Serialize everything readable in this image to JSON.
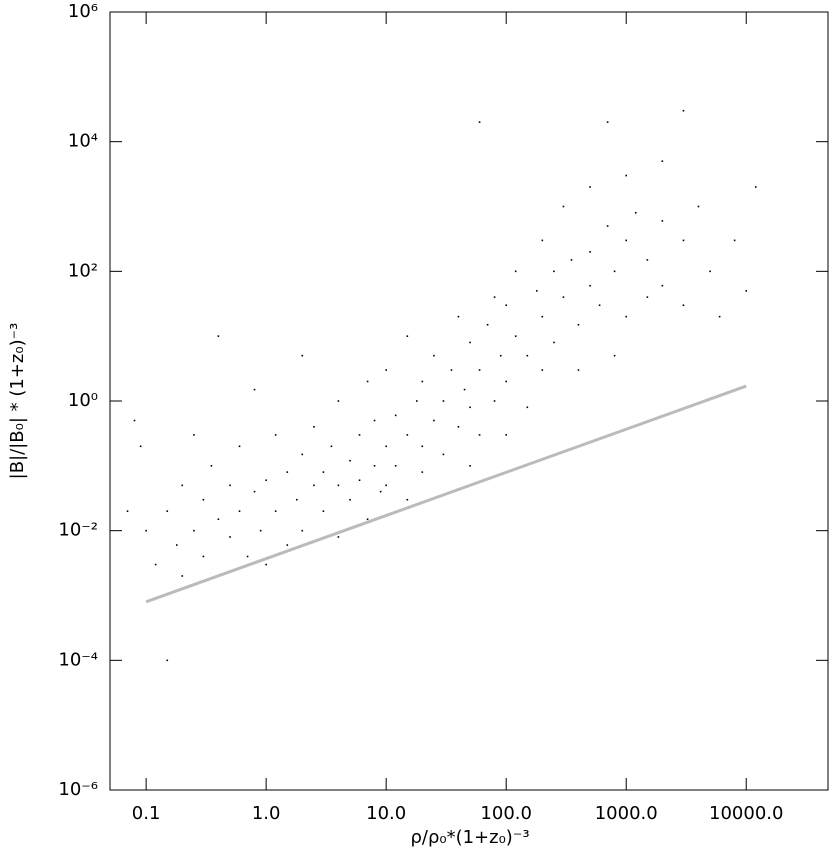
{
  "chart_data": {
    "type": "scatter",
    "x_label": "ρ/ρ₀*(1+z₀)⁻³",
    "y_label": "|B|/|B₀| * (1+z₀)⁻³",
    "xscale": "log",
    "yscale": "log",
    "grid": false,
    "xlim": [
      0.05,
      48000
    ],
    "ylim": [
      1e-06,
      1000000
    ],
    "xticks": [
      {
        "value": 0.1,
        "label": "0.1"
      },
      {
        "value": 1,
        "label": "1.0"
      },
      {
        "value": 10,
        "label": "10.0"
      },
      {
        "value": 100,
        "label": "100.0"
      },
      {
        "value": 1000,
        "label": "1000.0"
      },
      {
        "value": 10000,
        "label": "10000.0"
      }
    ],
    "yticks": [
      {
        "value": 1e-06,
        "label": "10⁻⁶"
      },
      {
        "value": 0.0001,
        "label": "10⁻⁴"
      },
      {
        "value": 0.01,
        "label": "10⁻²"
      },
      {
        "value": 1,
        "label": "10⁰"
      },
      {
        "value": 100,
        "label": "10²"
      },
      {
        "value": 10000,
        "label": "10⁴"
      },
      {
        "value": 1000000,
        "label": "10⁶"
      }
    ],
    "series": [
      {
        "mode": "points",
        "color": "#000000",
        "x": [
          0.08,
          0.1,
          0.12,
          0.15,
          0.15,
          0.18,
          0.2,
          0.2,
          0.25,
          0.25,
          0.3,
          0.3,
          0.35,
          0.4,
          0.4,
          0.5,
          0.5,
          0.6,
          0.6,
          0.7,
          0.8,
          0.8,
          0.9,
          1,
          1,
          1.2,
          1.2,
          1.5,
          1.5,
          1.8,
          2,
          2,
          2,
          2.5,
          2.5,
          3,
          3,
          3.5,
          4,
          4,
          4,
          5,
          5,
          6,
          6,
          7,
          7,
          8,
          8,
          9,
          10,
          10,
          10,
          12,
          12,
          15,
          15,
          15,
          18,
          20,
          20,
          20,
          25,
          25,
          30,
          30,
          35,
          40,
          40,
          45,
          50,
          50,
          50,
          60,
          60,
          70,
          80,
          80,
          90,
          100,
          100,
          100,
          120,
          120,
          150,
          150,
          180,
          200,
          200,
          200,
          250,
          250,
          300,
          300,
          350,
          400,
          400,
          500,
          500,
          500,
          600,
          700,
          800,
          800,
          1000,
          1000,
          1000,
          1200,
          1500,
          1500,
          2000,
          2000,
          2000,
          3000,
          3000,
          4000,
          5000,
          6000,
          8000,
          10000,
          12000,
          0.07,
          0.09,
          3000,
          700,
          0.4,
          60
        ],
        "values": [
          0.5,
          0.01,
          0.003,
          0.02,
          0.0001,
          0.006,
          0.05,
          0.002,
          0.01,
          0.3,
          0.03,
          0.004,
          0.1,
          0.015,
          0.002,
          0.05,
          0.008,
          0.2,
          0.02,
          0.004,
          0.04,
          1.5,
          0.01,
          0.06,
          0.003,
          0.3,
          0.02,
          0.08,
          0.006,
          0.03,
          0.15,
          0.01,
          5,
          0.05,
          0.4,
          0.08,
          0.02,
          0.2,
          0.05,
          1,
          0.008,
          0.12,
          0.03,
          0.3,
          0.06,
          2,
          0.015,
          0.1,
          0.5,
          0.04,
          0.2,
          0.05,
          3,
          0.6,
          0.1,
          0.3,
          0.03,
          10,
          1,
          0.2,
          0.08,
          2,
          0.5,
          5,
          1,
          0.15,
          3,
          0.4,
          20,
          1.5,
          0.8,
          0.1,
          8,
          3,
          0.3,
          15,
          1,
          40,
          5,
          2,
          0.3,
          30,
          10,
          100,
          5,
          0.8,
          50,
          20,
          3,
          300,
          100,
          8,
          40,
          1000,
          150,
          15,
          3,
          200,
          60,
          2000,
          30,
          500,
          100,
          5,
          300,
          20,
          3000,
          800,
          150,
          40,
          600,
          60,
          5000,
          300,
          30,
          1000,
          100,
          20,
          300,
          50,
          2000,
          0.02,
          0.2,
          30000,
          20000,
          10,
          20000
        ]
      },
      {
        "mode": "line",
        "color": "#bbbbbb",
        "x": [
          0.1,
          10000
        ],
        "values": [
          0.0008,
          1.7
        ]
      }
    ]
  }
}
